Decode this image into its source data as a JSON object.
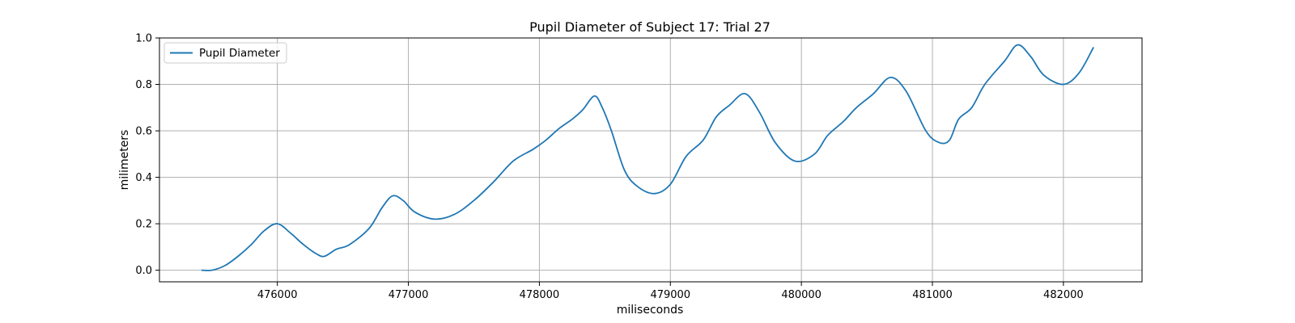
{
  "chart_data": {
    "type": "line",
    "title": "Pupil Diameter of Subject 17: Trial 27",
    "xlabel": "miliseconds",
    "ylabel": "milimeters",
    "xlim": [
      475100,
      482600
    ],
    "ylim": [
      -0.05,
      1.0
    ],
    "xticks": [
      476000,
      477000,
      478000,
      479000,
      480000,
      481000,
      482000
    ],
    "yticks": [
      0.0,
      0.2,
      0.4,
      0.6,
      0.8,
      1.0
    ],
    "xtick_labels": [
      "476000",
      "477000",
      "478000",
      "479000",
      "480000",
      "481000",
      "482000"
    ],
    "ytick_labels": [
      "0.0",
      "0.2",
      "0.4",
      "0.6",
      "0.8",
      "1.0"
    ],
    "grid": true,
    "legend_position": "top-left",
    "series": [
      {
        "name": "Pupil Diameter",
        "color": "#1f77b4",
        "x": [
          475420,
          475500,
          475600,
          475700,
          475800,
          475900,
          476000,
          476100,
          476200,
          476300,
          476360,
          476450,
          476550,
          476700,
          476800,
          476880,
          476960,
          477050,
          477200,
          477350,
          477500,
          477650,
          477800,
          477950,
          478050,
          478150,
          478250,
          478330,
          478420,
          478480,
          478550,
          478650,
          478750,
          478880,
          479000,
          479120,
          479250,
          479350,
          479450,
          479570,
          479680,
          479800,
          479950,
          480100,
          480200,
          480320,
          480420,
          480550,
          480680,
          480800,
          480950,
          481050,
          481130,
          481200,
          481300,
          481400,
          481550,
          481650,
          481750,
          481850,
          482000,
          482120,
          482230
        ],
        "y": [
          0.0,
          0.0,
          0.02,
          0.06,
          0.11,
          0.17,
          0.2,
          0.16,
          0.11,
          0.07,
          0.06,
          0.09,
          0.11,
          0.18,
          0.27,
          0.32,
          0.3,
          0.25,
          0.22,
          0.24,
          0.3,
          0.38,
          0.47,
          0.52,
          0.56,
          0.61,
          0.65,
          0.69,
          0.75,
          0.7,
          0.6,
          0.43,
          0.36,
          0.33,
          0.37,
          0.49,
          0.56,
          0.66,
          0.71,
          0.76,
          0.68,
          0.55,
          0.47,
          0.5,
          0.58,
          0.64,
          0.7,
          0.76,
          0.83,
          0.77,
          0.6,
          0.55,
          0.56,
          0.65,
          0.7,
          0.8,
          0.9,
          0.97,
          0.92,
          0.84,
          0.8,
          0.85,
          0.96
        ]
      }
    ]
  }
}
